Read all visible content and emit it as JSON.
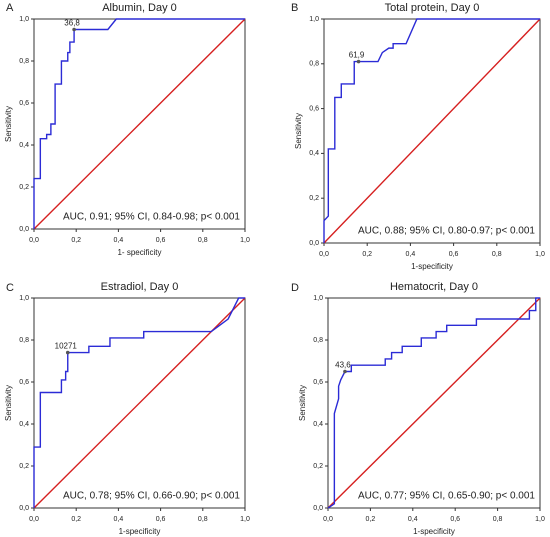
{
  "chart_data": [
    {
      "type": "line",
      "panel": "A",
      "title": "Albumin, Day 0",
      "xlabel": "1- specificity",
      "ylabel": "Sensitivity",
      "annotation": "AUC, 0.91; 95% CI, 0.84-0.98; p< 0.001",
      "xlim": [
        0,
        1
      ],
      "ylim": [
        0,
        1
      ],
      "xticks": [
        {
          "value": 0,
          "label": "0,0"
        },
        {
          "value": 0.2,
          "label": "0,2"
        },
        {
          "value": 0.4,
          "label": "0,4"
        },
        {
          "value": 0.6,
          "label": "0,6"
        },
        {
          "value": 0.8,
          "label": "0,8"
        },
        {
          "value": 1,
          "label": "1,0"
        }
      ],
      "yticks": [
        {
          "value": 0,
          "label": "0,0"
        },
        {
          "value": 0.2,
          "label": "0,2"
        },
        {
          "value": 0.4,
          "label": "0,4"
        },
        {
          "value": 0.6,
          "label": "0,6"
        },
        {
          "value": 0.8,
          "label": "0,8"
        },
        {
          "value": 1,
          "label": "1,0"
        }
      ],
      "series": [
        {
          "color": "#2b2bd6",
          "x": [
            0,
            0,
            0.03,
            0.03,
            0.06,
            0.06,
            0.08,
            0.08,
            0.1,
            0.1,
            0.13,
            0.13,
            0.16,
            0.16,
            0.17,
            0.17,
            0.19,
            0.19,
            0.35,
            0.39,
            1
          ],
          "values": [
            0,
            0.24,
            0.24,
            0.43,
            0.43,
            0.45,
            0.45,
            0.5,
            0.5,
            0.69,
            0.69,
            0.8,
            0.8,
            0.84,
            0.84,
            0.89,
            0.89,
            0.95,
            0.95,
            1,
            1
          ]
        },
        {
          "color": "#d62020",
          "x": [
            0,
            1
          ],
          "values": [
            0,
            1
          ]
        }
      ],
      "cutoff": {
        "label": "36,8",
        "x": 0.19,
        "y": 0.95
      }
    },
    {
      "type": "line",
      "panel": "B",
      "title": "Total protein, Day 0",
      "xlabel": "1-specificity",
      "ylabel": "Sensitivity",
      "annotation": "AUC, 0.88; 95% CI, 0.80-0.97; p< 0.001",
      "xlim": [
        0,
        1
      ],
      "ylim": [
        0,
        1
      ],
      "xticks": [
        {
          "value": 0,
          "label": "0,0"
        },
        {
          "value": 0.2,
          "label": "0,2"
        },
        {
          "value": 0.4,
          "label": "0,4"
        },
        {
          "value": 0.6,
          "label": "0,6"
        },
        {
          "value": 0.8,
          "label": "0,8"
        },
        {
          "value": 1,
          "label": "1,0"
        }
      ],
      "yticks": [
        {
          "value": 0,
          "label": "0,0"
        },
        {
          "value": 0.2,
          "label": "0,2"
        },
        {
          "value": 0.4,
          "label": "0,4"
        },
        {
          "value": 0.6,
          "label": "0,6"
        },
        {
          "value": 0.8,
          "label": "0,8"
        },
        {
          "value": 1,
          "label": "1,0"
        }
      ],
      "series": [
        {
          "color": "#2b2bd6",
          "x": [
            0,
            0,
            0.02,
            0.02,
            0.05,
            0.05,
            0.08,
            0.08,
            0.14,
            0.14,
            0.25,
            0.27,
            0.3,
            0.32,
            0.32,
            0.38,
            0.43,
            1
          ],
          "values": [
            0,
            0.1,
            0.12,
            0.42,
            0.42,
            0.65,
            0.65,
            0.71,
            0.71,
            0.81,
            0.81,
            0.85,
            0.87,
            0.87,
            0.89,
            0.89,
            1,
            1
          ]
        },
        {
          "color": "#d62020",
          "x": [
            0,
            1
          ],
          "values": [
            0,
            1
          ]
        }
      ],
      "cutoff": {
        "label": "61,9",
        "x": 0.16,
        "y": 0.81
      }
    },
    {
      "type": "line",
      "panel": "C",
      "title": "Estradiol, Day 0",
      "xlabel": "1-specificity",
      "ylabel": "Sensitivity",
      "annotation": "AUC, 0.78; 95% CI, 0.66-0.90; p< 0.001",
      "xlim": [
        0,
        1
      ],
      "ylim": [
        0,
        1
      ],
      "xticks": [
        {
          "value": 0,
          "label": "0,0"
        },
        {
          "value": 0.2,
          "label": "0,2"
        },
        {
          "value": 0.4,
          "label": "0,4"
        },
        {
          "value": 0.6,
          "label": "0,6"
        },
        {
          "value": 0.8,
          "label": "0,8"
        },
        {
          "value": 1,
          "label": "1,0"
        }
      ],
      "yticks": [
        {
          "value": 0,
          "label": "0,0"
        },
        {
          "value": 0.2,
          "label": "0,2"
        },
        {
          "value": 0.4,
          "label": "0,4"
        },
        {
          "value": 0.6,
          "label": "0,6"
        },
        {
          "value": 0.8,
          "label": "0,8"
        },
        {
          "value": 1,
          "label": "1,0"
        }
      ],
      "series": [
        {
          "color": "#2b2bd6",
          "x": [
            0,
            0,
            0.03,
            0.03,
            0.13,
            0.13,
            0.15,
            0.15,
            0.16,
            0.16,
            0.26,
            0.26,
            0.36,
            0.36,
            0.52,
            0.52,
            0.84,
            0.88,
            0.92,
            0.97,
            1
          ],
          "values": [
            0,
            0.29,
            0.29,
            0.55,
            0.55,
            0.61,
            0.61,
            0.65,
            0.65,
            0.74,
            0.74,
            0.77,
            0.77,
            0.81,
            0.81,
            0.84,
            0.84,
            0.87,
            0.9,
            1,
            1
          ]
        },
        {
          "color": "#d62020",
          "x": [
            0,
            1
          ],
          "values": [
            0,
            1
          ]
        }
      ],
      "cutoff": {
        "label": "10271",
        "x": 0.16,
        "y": 0.74
      }
    },
    {
      "type": "line",
      "panel": "D",
      "title": "Hematocrit, Day 0",
      "xlabel": "1-specificity",
      "ylabel": "Sensitivity",
      "annotation": "AUC, 0.77; 95% CI, 0.65-0.90; p< 0.001",
      "xlim": [
        0,
        1
      ],
      "ylim": [
        0,
        1
      ],
      "xticks": [
        {
          "value": 0,
          "label": "0,0"
        },
        {
          "value": 0.2,
          "label": "0,2"
        },
        {
          "value": 0.4,
          "label": "0,4"
        },
        {
          "value": 0.6,
          "label": "0,6"
        },
        {
          "value": 0.8,
          "label": "0,8"
        },
        {
          "value": 1,
          "label": "1,0"
        }
      ],
      "yticks": [
        {
          "value": 0,
          "label": "0,0"
        },
        {
          "value": 0.2,
          "label": "0,2"
        },
        {
          "value": 0.4,
          "label": "0,4"
        },
        {
          "value": 0.6,
          "label": "0,6"
        },
        {
          "value": 0.8,
          "label": "0,8"
        },
        {
          "value": 1,
          "label": "1,0"
        }
      ],
      "series": [
        {
          "color": "#2b2bd6",
          "x": [
            0,
            0.03,
            0.03,
            0.05,
            0.05,
            0.06,
            0.08,
            0.11,
            0.11,
            0.27,
            0.27,
            0.3,
            0.3,
            0.35,
            0.35,
            0.44,
            0.44,
            0.51,
            0.51,
            0.56,
            0.56,
            0.7,
            0.7,
            0.95,
            0.95,
            0.98,
            0.98,
            1
          ],
          "values": [
            0,
            0.02,
            0.45,
            0.52,
            0.58,
            0.61,
            0.65,
            0.65,
            0.68,
            0.68,
            0.71,
            0.71,
            0.74,
            0.74,
            0.77,
            0.77,
            0.81,
            0.81,
            0.84,
            0.84,
            0.87,
            0.87,
            0.9,
            0.9,
            0.94,
            0.94,
            1,
            1
          ]
        },
        {
          "color": "#d62020",
          "x": [
            0,
            1
          ],
          "values": [
            0,
            1
          ]
        }
      ],
      "cutoff": {
        "label": "43,6",
        "x": 0.08,
        "y": 0.65
      }
    }
  ]
}
